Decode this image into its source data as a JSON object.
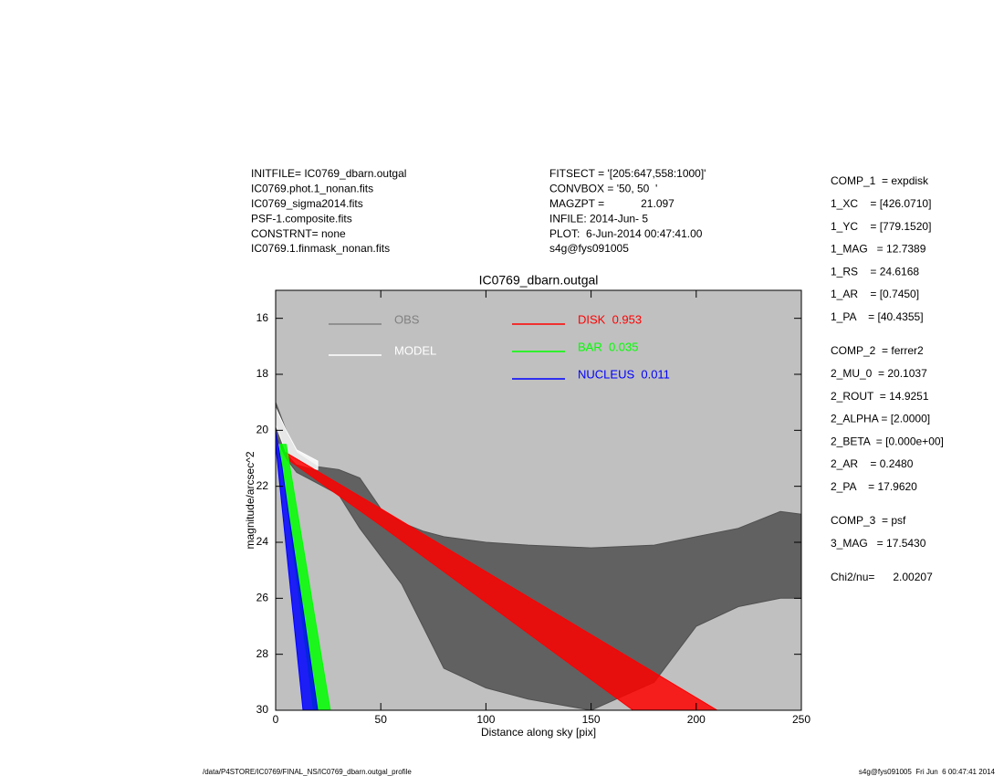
{
  "header": {
    "left": [
      "INITFILE= IC0769_dbarn.outgal",
      "IC0769.phot.1_nonan.fits",
      "IC0769_sigma2014.fits",
      "PSF-1.composite.fits",
      "CONSTRNT= none",
      "IC0769.1.finmask_nonan.fits"
    ],
    "middle": [
      "FITSECT = '[205:647,558:1000]'",
      "CONVBOX = '50, 50  '",
      "MAGZPT =            21.097",
      "INFILE: 2014-Jun- 5",
      "PLOT:  6-Jun-2014 00:47:41.00",
      "s4g@fys091005"
    ]
  },
  "parameters": [
    [
      "COMP_1  = expdisk",
      "1_XC    = [426.0710]",
      "1_YC    = [779.1520]",
      "1_MAG   = 12.7389",
      "1_RS    = 24.6168",
      "1_AR    = [0.7450]",
      "1_PA    = [40.4355]"
    ],
    [
      "COMP_2  = ferrer2",
      "2_MU_0  = 20.1037",
      "2_ROUT  = 14.9251",
      "2_ALPHA = [2.0000]",
      "2_BETA  = [0.000e+00]",
      "2_AR    = 0.2480",
      "2_PA    = 17.9620"
    ],
    [
      "COMP_3  = psf",
      "3_MAG   = 17.5430"
    ],
    [
      "Chi2/nu=      2.00207"
    ]
  ],
  "footer": {
    "left": "/data/P4STORE/IC0769/FINAL_NS/IC0769_dbarn.outgal_profile",
    "right": "s4g@fys091005  Fri Jun  6 00:47:41 2014"
  },
  "chart_data": {
    "type": "band",
    "title": "IC0769_dbarn.outgal",
    "x_label": "Distance along sky [pix]",
    "y_label": "magnitude/arcsec^2",
    "xlim": [
      0,
      250
    ],
    "ylim": [
      15,
      30
    ],
    "y_inverted": true,
    "xticks": [
      0,
      50,
      100,
      150,
      200,
      250
    ],
    "yticks": [
      16,
      18,
      20,
      22,
      24,
      26,
      28,
      30
    ],
    "background": "#c0c0c0",
    "series": [
      {
        "name": "OBS",
        "color": "#505050",
        "legend_color": "#808080",
        "x": [
          0,
          5,
          10,
          20,
          30,
          40,
          50,
          60,
          70,
          80,
          100,
          120,
          150,
          180,
          200,
          220,
          240,
          250
        ],
        "low": [
          19.0,
          20.0,
          20.8,
          21.3,
          21.4,
          21.7,
          22.8,
          23.3,
          23.6,
          23.8,
          24.0,
          24.1,
          24.2,
          24.1,
          23.8,
          23.5,
          22.9,
          23.0
        ],
        "high": [
          20.2,
          21.0,
          21.5,
          21.9,
          22.3,
          23.5,
          24.5,
          25.5,
          27.0,
          28.5,
          29.2,
          29.6,
          30,
          29.0,
          27.0,
          26.3,
          26.0,
          26.0
        ]
      },
      {
        "name": "MODEL",
        "color": "#ffffff",
        "legend_color": "#ffffff",
        "x": [
          0,
          5,
          10,
          20
        ],
        "low": [
          19.2,
          20.0,
          20.7,
          21.1
        ],
        "high": [
          19.8,
          20.8,
          21.2,
          21.4
        ]
      },
      {
        "name": "DISK  0.953",
        "color": "#ff0000",
        "legend_color": "#ff0000",
        "x": [
          5,
          50,
          100,
          150,
          170,
          210
        ],
        "low": [
          20.8,
          22.8,
          25.05,
          27.3,
          28.2,
          30
        ],
        "high": [
          21.0,
          23.4,
          26.15,
          28.9,
          30,
          30
        ]
      },
      {
        "name": "BAR  0.035",
        "color": "#00ff00",
        "legend_color": "#00ff00",
        "x": [
          2,
          5,
          10,
          15,
          18,
          26
        ],
        "low": [
          20.5,
          20.5,
          22.76,
          25.02,
          26.4,
          30
        ],
        "high": [
          20.6,
          22.4,
          25.3,
          28.2,
          30,
          30
        ]
      },
      {
        "name": "NUCLEUS  0.011",
        "color": "#0000ff",
        "legend_color": "#0000ff",
        "x": [
          0,
          3,
          6,
          10,
          13,
          20
        ],
        "low": [
          20.0,
          21.3,
          22.9,
          24.9,
          26.4,
          30
        ],
        "high": [
          20.5,
          22.7,
          24.9,
          27.8,
          30,
          30
        ]
      }
    ]
  }
}
